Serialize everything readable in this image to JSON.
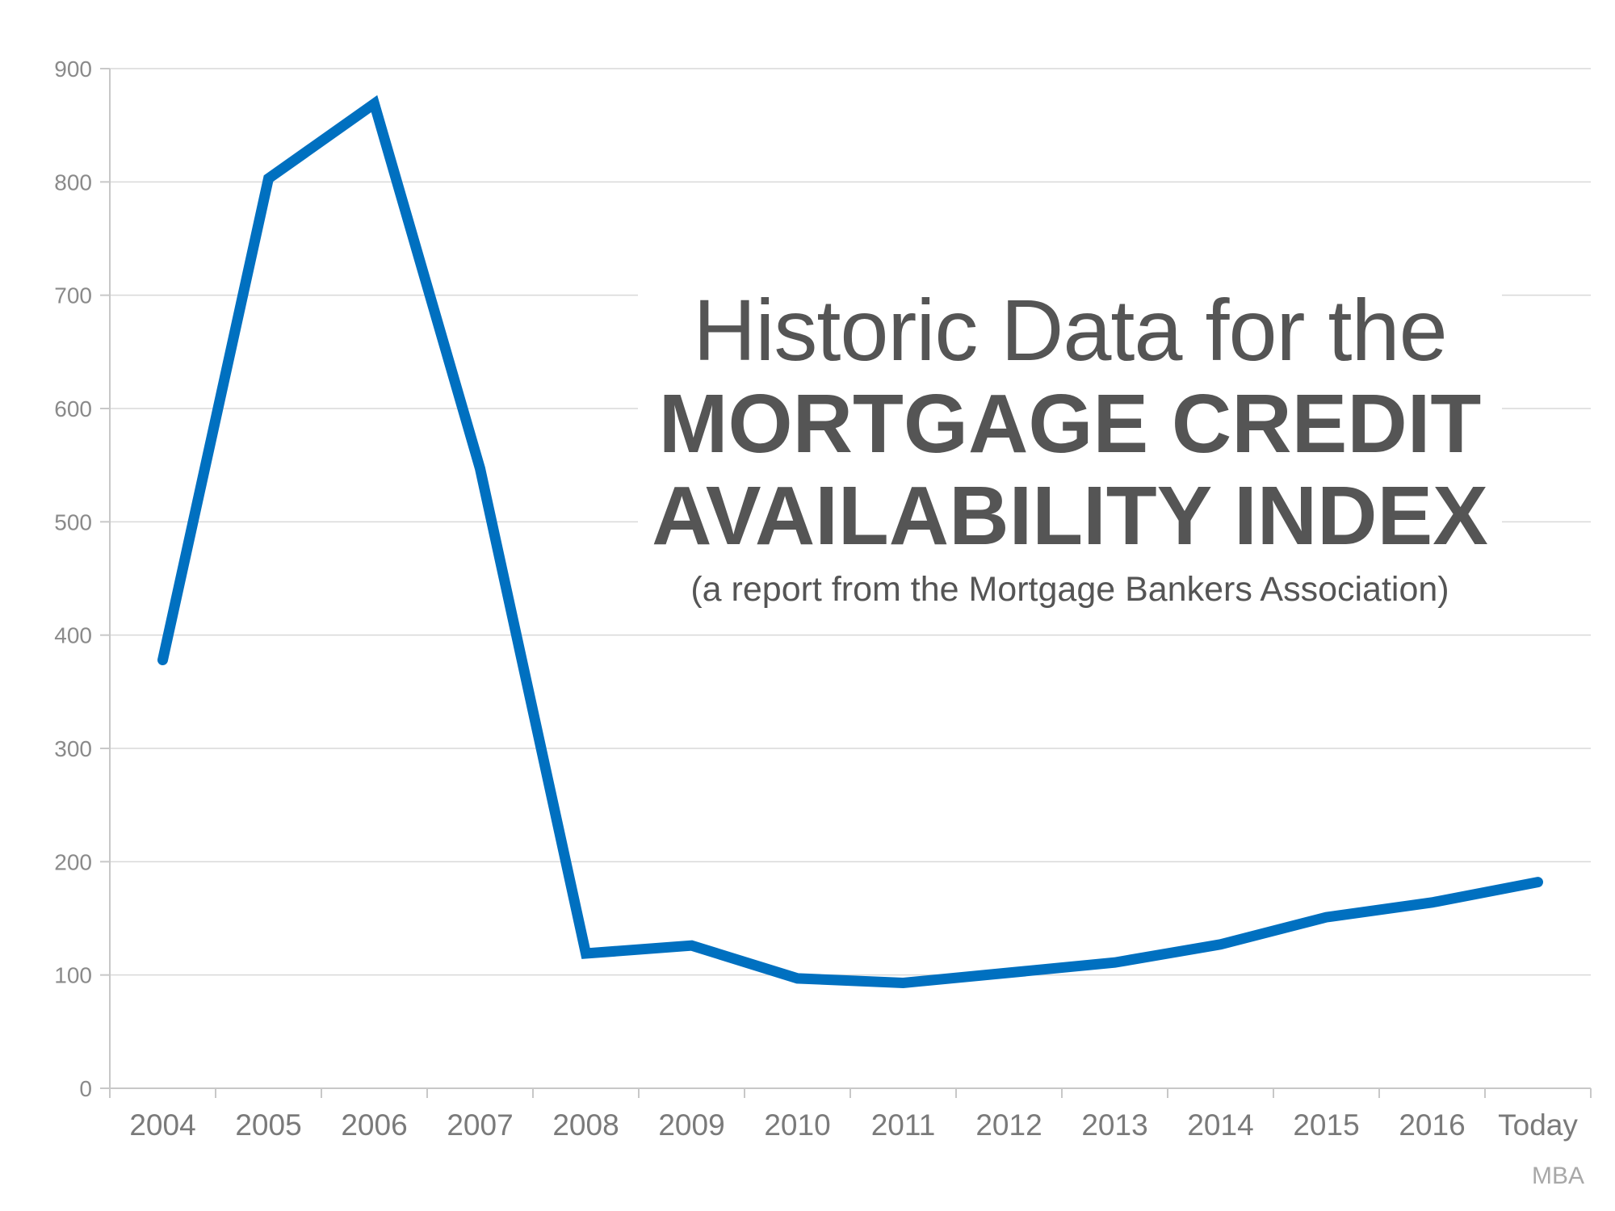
{
  "chart_data": {
    "type": "line",
    "categories": [
      "2004",
      "2005",
      "2006",
      "2007",
      "2008",
      "2009",
      "2010",
      "2011",
      "2012",
      "2013",
      "2014",
      "2015",
      "2016",
      "Today"
    ],
    "values": [
      378,
      803,
      869,
      547,
      119,
      126,
      97,
      93,
      102,
      111,
      127,
      151,
      164,
      182
    ],
    "ylim": [
      0,
      900
    ],
    "yticks": [
      0,
      100,
      200,
      300,
      400,
      500,
      600,
      700,
      800,
      900
    ],
    "grid": true,
    "line_color": "#0070c0",
    "title_line1": "Historic Data for the",
    "title_line2": "MORTGAGE CREDIT",
    "title_line3": "AVAILABILITY INDEX",
    "subtitle": "(a report from the Mortgage Bankers Association)",
    "source": "MBA"
  }
}
